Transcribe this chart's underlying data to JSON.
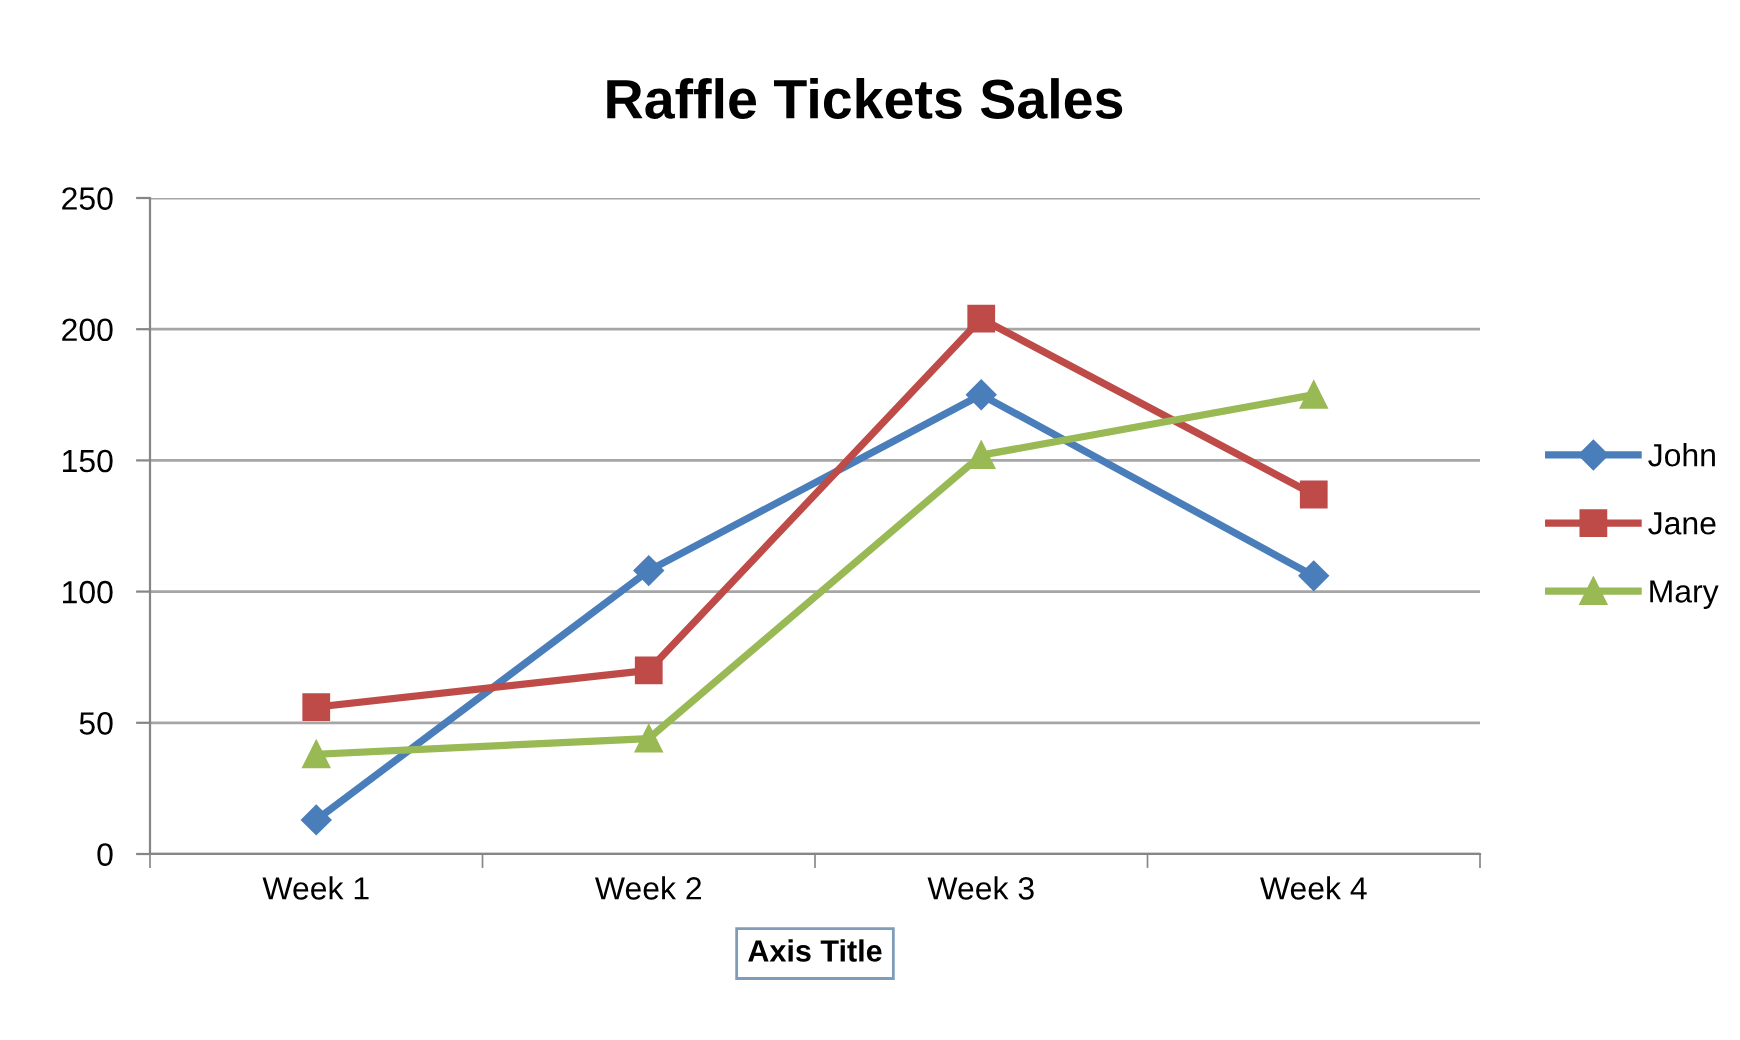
{
  "chart_data": {
    "type": "line",
    "title": "Raffle Tickets Sales",
    "xlabel": "Axis Title",
    "categories": [
      "Week 1",
      "Week 2",
      "Week 3",
      "Week 4"
    ],
    "series": [
      {
        "name": "John",
        "color": "#4a7ebb",
        "marker": "diamond",
        "values": [
          13,
          108,
          175,
          106
        ]
      },
      {
        "name": "Jane",
        "color": "#be4b48",
        "marker": "square",
        "values": [
          56,
          70,
          204,
          137
        ]
      },
      {
        "name": "Mary",
        "color": "#98b954",
        "marker": "triangle",
        "values": [
          38,
          44,
          152,
          175
        ]
      }
    ],
    "ylim": [
      0,
      250
    ],
    "yticks": [
      0,
      50,
      100,
      150,
      200,
      250
    ],
    "grid": "y",
    "legend": "right",
    "line_style": "solid"
  }
}
